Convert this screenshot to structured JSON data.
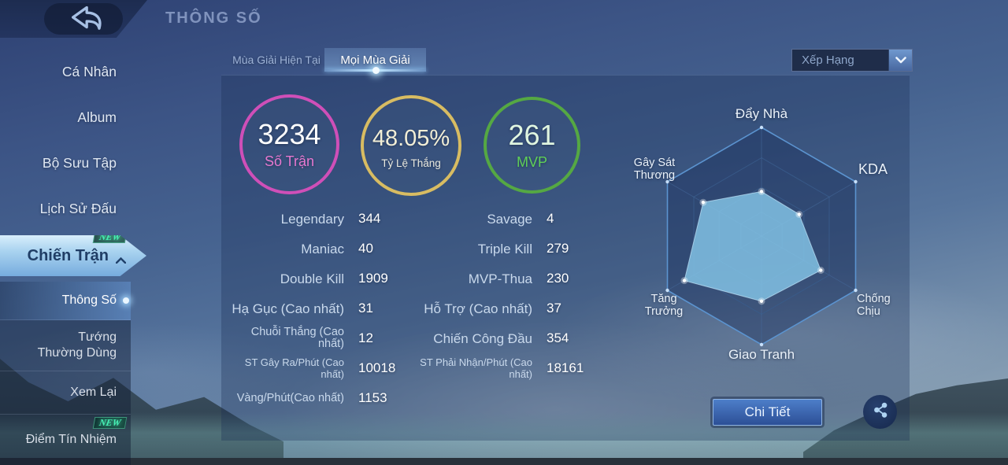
{
  "header": {
    "title": "THÔNG SỐ"
  },
  "sidebar": {
    "items": [
      {
        "label": "Cá Nhân"
      },
      {
        "label": "Album"
      },
      {
        "label": "Bộ Sưu Tập"
      },
      {
        "label": "Lịch Sử Đấu"
      },
      {
        "label": "Chiến Trận",
        "badge": "NEW"
      }
    ],
    "submenu": [
      {
        "label": "Thông Số",
        "active": true
      },
      {
        "label": "Tướng Thường Dùng"
      },
      {
        "label": "Xem Lại"
      },
      {
        "label": "Điểm Tín Nhiệm",
        "badge": "NEW"
      }
    ]
  },
  "tabs": [
    {
      "label": "Mùa Giải Hiện Tại",
      "active": false
    },
    {
      "label": "Mọi Mùa Giải",
      "active": true
    }
  ],
  "filter_dropdown": {
    "value": "Xếp Hạng"
  },
  "summary_circles": [
    {
      "value": "3234",
      "label": "Số Trận",
      "ring_color": "#cf4fb8",
      "label_color": "#e678d0",
      "value_color": "#ffffff"
    },
    {
      "value": "48.05%",
      "label": "Tỷ Lệ Thắng",
      "ring_color": "#d8bc62",
      "label_color": "#e9e9df",
      "value_color": "#f2eed6"
    },
    {
      "value": "261",
      "label": "MVP",
      "ring_color": "#55a843",
      "label_color": "#5fcf58",
      "value_color": "#dff5e0"
    }
  ],
  "stats": {
    "left": [
      {
        "label": "Legendary",
        "value": "344"
      },
      {
        "label": "Maniac",
        "value": "40"
      },
      {
        "label": "Double Kill",
        "value": "1909"
      },
      {
        "label": "Hạ Gục (Cao nhất)",
        "value": "31"
      },
      {
        "label": "Chuỗi Thắng (Cao nhất)",
        "value": "12"
      },
      {
        "label": "ST Gây Ra/Phút (Cao nhất)",
        "value": "10018"
      },
      {
        "label": "Vàng/Phút(Cao nhất)",
        "value": "1153"
      }
    ],
    "right": [
      {
        "label": "Savage",
        "value": "4"
      },
      {
        "label": "Triple Kill",
        "value": "279"
      },
      {
        "label": "MVP-Thua",
        "value": "230"
      },
      {
        "label": "Hỗ Trợ (Cao nhất)",
        "value": "37"
      },
      {
        "label": "Chiến Công Đầu",
        "value": "354"
      },
      {
        "label": "ST Phải Nhận/Phút (Cao nhất)",
        "value": "18161"
      }
    ]
  },
  "chart_data": {
    "type": "radar",
    "title": "",
    "axes": [
      "Đẩy Nhà",
      "KDA",
      "Chống Chịu",
      "Giao Tranh",
      "Tăng Trưởng",
      "Gây Sát Thương"
    ],
    "values": [
      41,
      40,
      63,
      60,
      82,
      62
    ],
    "max": 100,
    "rings": [
      1,
      0.72,
      0.45,
      0.22
    ],
    "fill_color": "#85c6e8",
    "grid_color": "#3c639b",
    "legend": "none"
  },
  "footer": {
    "detail_button": "Chi Tiết"
  }
}
